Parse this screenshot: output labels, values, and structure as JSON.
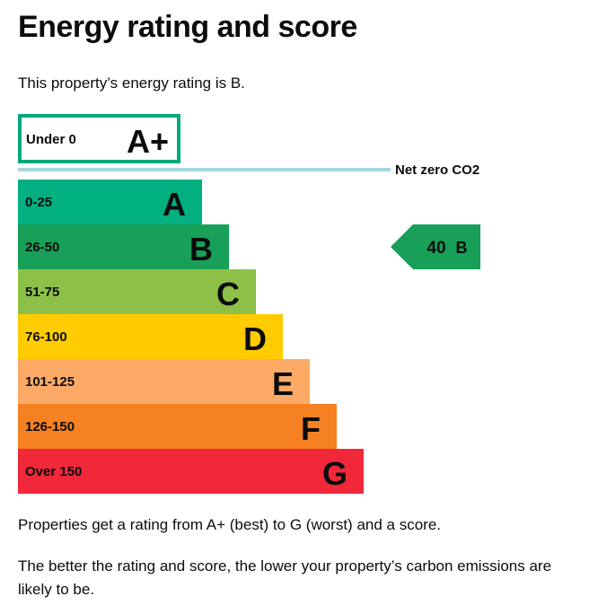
{
  "page": {
    "title": "Energy rating and score",
    "lead": "This property’s energy rating is B.",
    "paragraphs": [
      "Properties get a rating from A+ (best) to G (worst) and a score.",
      "The better the rating and score, the lower your property’s carbon emissions are likely to be."
    ]
  },
  "chart_data": {
    "type": "bar",
    "title": "Energy rating and score",
    "top_band": {
      "range": "Under 0",
      "letter": "A+",
      "color": "#00a87e"
    },
    "net_zero_label": "Net zero CO2",
    "net_zero_line_color": "#a7d7e0",
    "bands": [
      {
        "range": "0-25",
        "letter": "A",
        "color": "#00b080"
      },
      {
        "range": "26-50",
        "letter": "B",
        "color": "#18a058"
      },
      {
        "range": "51-75",
        "letter": "C",
        "color": "#8dc047"
      },
      {
        "range": "76-100",
        "letter": "D",
        "color": "#ffcc00"
      },
      {
        "range": "101-125",
        "letter": "E",
        "color": "#fcaa65"
      },
      {
        "range": "126-150",
        "letter": "F",
        "color": "#f68122"
      },
      {
        "range": "Over 150",
        "letter": "G",
        "color": "#f1283a"
      }
    ],
    "current": {
      "score": "40",
      "band": "B",
      "band_index": 1,
      "color": "#18a058"
    }
  }
}
